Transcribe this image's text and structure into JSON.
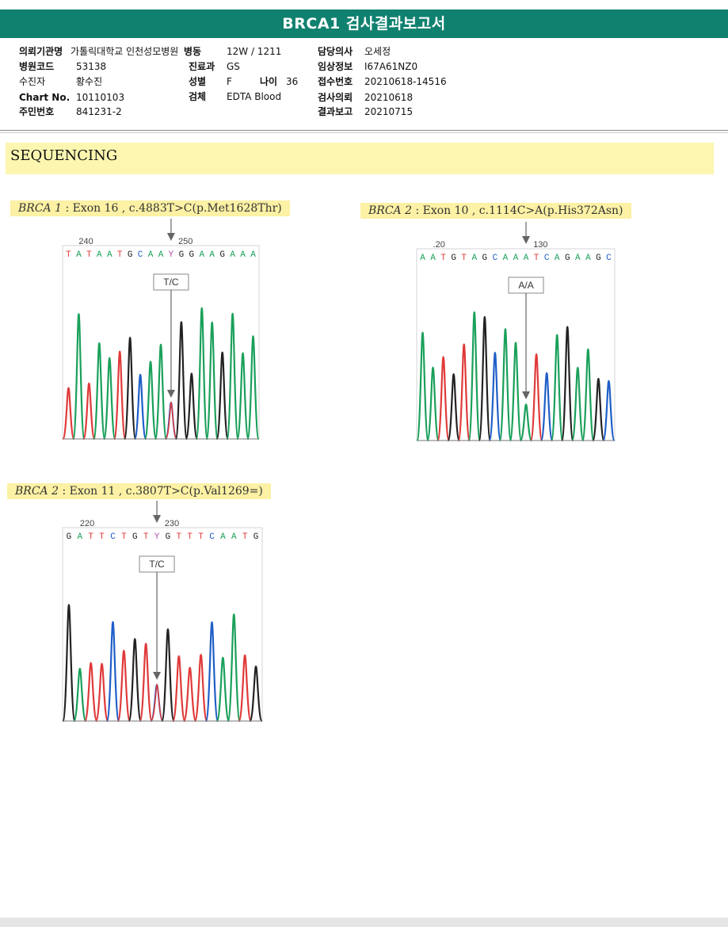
{
  "report": {
    "title": "BRCA1 검사결과보고서"
  },
  "patient_info": {
    "left": [
      {
        "label": "의뢰기관명",
        "value": "가톨릭대학교 인천성모병원"
      },
      {
        "label": "병원코드",
        "value": "53138"
      },
      {
        "label": "수진자",
        "value": "황수진"
      },
      {
        "label": "Chart No.",
        "value": "10110103"
      },
      {
        "label": "주민번호",
        "value": "841231-2"
      }
    ],
    "middle": [
      {
        "label": "병동",
        "value": "12W / 1211"
      },
      {
        "label": "진료과",
        "value": "GS"
      },
      {
        "label": "성별",
        "value": "F"
      },
      {
        "label": "검체",
        "value": "EDTA Blood"
      }
    ],
    "age": {
      "label": "나이",
      "value": "36"
    },
    "right": [
      {
        "label": "담당의사",
        "value": "오세정"
      },
      {
        "label": "임상정보",
        "value": "I67A61NZ0"
      },
      {
        "label": "접수번호",
        "value": "20210618-14516"
      },
      {
        "label": "검사의뢰",
        "value": "20210618"
      },
      {
        "label": "결과보고",
        "value": "20210715"
      }
    ]
  },
  "section": {
    "title": "SEQUENCING"
  },
  "variants": [
    {
      "gene": "BRCA 1",
      "detail": " : Exon 16 , c.4883T>C(p.Met1628Thr)",
      "genotype": "T/C",
      "pos_start": "240",
      "pos_end": "250",
      "bases": "TATAATGCAAYGGAAGAAA",
      "highlight": 10
    },
    {
      "gene": "BRCA 2",
      "detail": " : Exon 10 , c.1114C>A(p.His372Asn)",
      "genotype": "A/A",
      "pos_start": ".20",
      "pos_end": "130",
      "bases": "AATGTAGCAAATCAGAAGC",
      "highlight": 10
    },
    {
      "gene": "BRCA 2",
      "detail": " : Exon 11 , c.3807T>C(p.Val1269=)",
      "genotype": "T/C",
      "pos_start": "220",
      "pos_end": "230",
      "bases": "GATTCTGTYGTTTCAATG",
      "highlight": 8
    }
  ],
  "base_colors": {
    "A": "#1aa05a",
    "C": "#1f5fc8",
    "G": "#222222",
    "T": "#e03a3a",
    "Y": "#b04fb0"
  }
}
